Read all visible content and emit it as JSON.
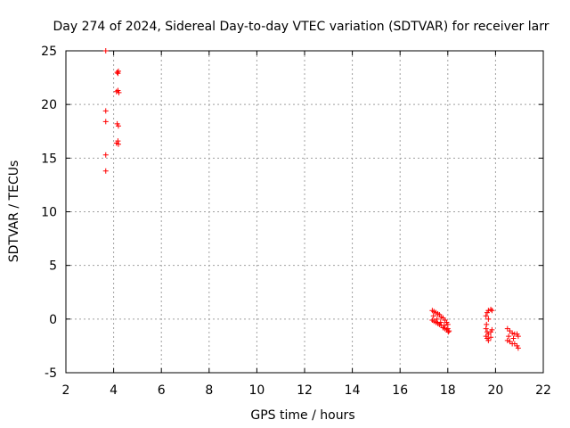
{
  "chart_data": {
    "type": "scatter",
    "title": "Day 274 of 2024, Sidereal Day-to-day VTEC variation (SDTVAR) for receiver larr",
    "xlabel": "GPS time / hours",
    "ylabel": "SDTVAR / TECUs",
    "xlim": [
      2,
      22
    ],
    "ylim": [
      -5,
      25
    ],
    "xticks": [
      "2",
      "4",
      "6",
      "8",
      "10",
      "12",
      "14",
      "16",
      "18",
      "20",
      "22"
    ],
    "yticks": [
      "-5",
      "0",
      "5",
      "10",
      "15",
      "20",
      "25"
    ],
    "grid": true,
    "series": [
      {
        "name": "SDTVAR",
        "color": "#ff0000",
        "marker": "plus",
        "points": [
          [
            3.67,
            25.0
          ],
          [
            3.67,
            19.4
          ],
          [
            3.67,
            18.4
          ],
          [
            3.67,
            15.3
          ],
          [
            3.67,
            13.8
          ],
          [
            4.15,
            23.0
          ],
          [
            4.2,
            23.1
          ],
          [
            4.18,
            22.9
          ],
          [
            4.12,
            21.2
          ],
          [
            4.18,
            21.3
          ],
          [
            4.22,
            21.1
          ],
          [
            4.15,
            18.2
          ],
          [
            4.2,
            18.0
          ],
          [
            4.12,
            16.4
          ],
          [
            4.18,
            16.6
          ],
          [
            4.2,
            16.3
          ],
          [
            17.35,
            0.8
          ],
          [
            17.42,
            0.7
          ],
          [
            17.5,
            0.6
          ],
          [
            17.58,
            0.5
          ],
          [
            17.65,
            0.4
          ],
          [
            17.72,
            0.2
          ],
          [
            17.8,
            0.1
          ],
          [
            17.88,
            -0.1
          ],
          [
            17.95,
            -0.3
          ],
          [
            18.0,
            -0.5
          ],
          [
            17.35,
            -0.1
          ],
          [
            17.42,
            -0.2
          ],
          [
            17.5,
            -0.3
          ],
          [
            17.58,
            -0.4
          ],
          [
            17.65,
            -0.5
          ],
          [
            17.72,
            -0.6
          ],
          [
            17.8,
            -0.8
          ],
          [
            17.88,
            -0.9
          ],
          [
            17.95,
            -1.0
          ],
          [
            18.02,
            -1.2
          ],
          [
            17.4,
            0.3
          ],
          [
            17.55,
            0.0
          ],
          [
            17.7,
            -0.3
          ],
          [
            17.85,
            -0.6
          ],
          [
            18.0,
            -0.9
          ],
          [
            18.05,
            -1.1
          ],
          [
            19.6,
            0.3
          ],
          [
            19.65,
            0.6
          ],
          [
            19.7,
            0.8
          ],
          [
            19.8,
            0.9
          ],
          [
            19.85,
            0.8
          ],
          [
            19.7,
            0.0
          ],
          [
            19.6,
            -0.9
          ],
          [
            19.65,
            -1.2
          ],
          [
            19.7,
            -1.4
          ],
          [
            19.8,
            -1.2
          ],
          [
            19.85,
            -1.0
          ],
          [
            19.6,
            -1.6
          ],
          [
            19.65,
            -1.8
          ],
          [
            19.7,
            -2.0
          ],
          [
            19.8,
            -1.7
          ],
          [
            19.62,
            -0.5
          ],
          [
            20.5,
            -0.9
          ],
          [
            20.6,
            -1.1
          ],
          [
            20.7,
            -1.3
          ],
          [
            20.8,
            -1.4
          ],
          [
            20.9,
            -1.4
          ],
          [
            20.95,
            -1.6
          ],
          [
            20.5,
            -2.0
          ],
          [
            20.6,
            -2.1
          ],
          [
            20.7,
            -2.3
          ],
          [
            20.8,
            -2.3
          ],
          [
            20.9,
            -2.5
          ],
          [
            20.95,
            -2.7
          ],
          [
            20.55,
            -1.6
          ],
          [
            20.75,
            -1.8
          ]
        ]
      }
    ]
  }
}
